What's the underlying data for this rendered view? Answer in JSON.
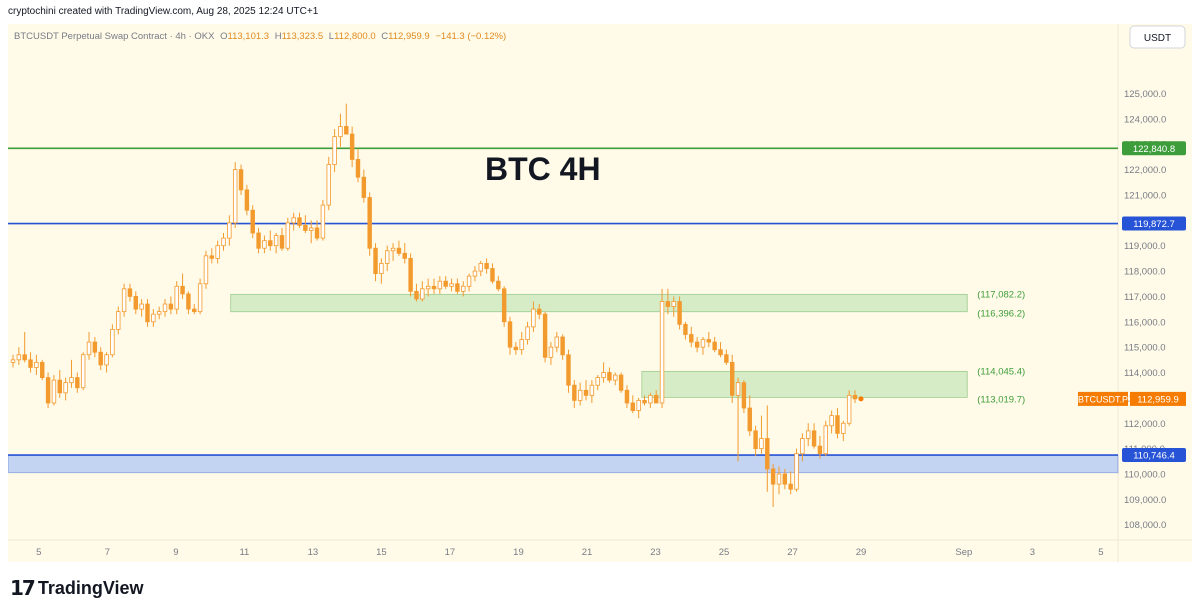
{
  "header": {
    "attribution": "cryptochini created with TradingView.com, Aug 28, 2025 12:24 UTC+1"
  },
  "symbol_bar": {
    "symbol": "BTCUSDT Perpetual Swap Contract · 4h · OKX",
    "open_label": "O",
    "open": "113,101.3",
    "high_label": "H",
    "high": "113,323.5",
    "low_label": "L",
    "low": "112,800.0",
    "close_label": "C",
    "close": "112,959.9",
    "change": "−141.3 (−0.12%)"
  },
  "currency": "USDT",
  "footer": {
    "brand": "TradingView",
    "logo_mark": "17"
  },
  "colors": {
    "background": "#fffbe8",
    "candle": "#f39a2e",
    "candle_bull_body": "#ffffff",
    "green_line": "#3d9d3a",
    "blue_line": "#2753d6",
    "zone_green_fill": "#cfe9c1",
    "zone_blue_fill": "#b9cdf3",
    "price_tag_orange": "#f57c00",
    "text_orange": "#e08a1e"
  },
  "chart_data": {
    "type": "candlestick",
    "title": "BTC 4H",
    "y_range": [
      107200,
      126400
    ],
    "y_ticks": [
      108000,
      109000,
      110000,
      111000,
      112000,
      113000,
      114000,
      115000,
      116000,
      117000,
      118000,
      119000,
      120000,
      121000,
      122000,
      123000,
      124000,
      125000
    ],
    "y_tick_labels": [
      "108,000.0",
      "109,000.0",
      "110,000.0",
      "111,000.0",
      "112,000.0",
      "113,000.0",
      "114,000.0",
      "115,000.0",
      "116,000.0",
      "117,000.0",
      "118,000.0",
      "119,000.0",
      "120,000.0",
      "121,000.0",
      "122,000.0",
      "123,000.0",
      "124,000.0",
      "125,000.0"
    ],
    "x_tick_labels": [
      "5",
      "7",
      "9",
      "11",
      "13",
      "15",
      "17",
      "19",
      "21",
      "23",
      "25",
      "27",
      "29",
      "Sep",
      "3",
      "5"
    ],
    "x_tick_days": [
      5,
      7,
      9,
      11,
      13,
      15,
      17,
      19,
      21,
      23,
      25,
      27,
      29,
      32,
      34,
      36
    ],
    "x_range_days": [
      4.1,
      36.5
    ],
    "horizontal_lines": [
      {
        "name": "resistance",
        "value": 122840.8,
        "label": "122,840.8",
        "color": "green"
      },
      {
        "name": "resistance-2",
        "value": 119872.7,
        "label": "119,872.7",
        "color": "blue"
      },
      {
        "name": "support",
        "value": 110746.4,
        "label": "110,746.4",
        "color": "blue"
      }
    ],
    "zones": [
      {
        "name": "zone-upper",
        "from_day": 10.6,
        "to_day": 32.1,
        "top": 117082.2,
        "bottom": 116396.2,
        "top_label": "(117,082.2)",
        "bottom_label": "(116,396.2)",
        "color": "green"
      },
      {
        "name": "zone-middle",
        "from_day": 22.6,
        "to_day": 32.1,
        "top": 114045.4,
        "bottom": 113019.7,
        "top_label": "(114,045.4)",
        "bottom_label": "(113,019.7)",
        "color": "green"
      },
      {
        "name": "zone-support",
        "from_day": 4.1,
        "to_day": 36.5,
        "top": 110746.4,
        "bottom": 110050,
        "color": "blue"
      }
    ],
    "last_price": {
      "symbol": "BTCUSDT.P",
      "value": 112959.9,
      "label": "112,959.9"
    },
    "candles": [
      {
        "o": 114400,
        "h": 114700,
        "l": 114200,
        "c": 114500
      },
      {
        "o": 114500,
        "h": 115000,
        "l": 114300,
        "c": 114700
      },
      {
        "o": 114700,
        "h": 115600,
        "l": 114400,
        "c": 114500
      },
      {
        "o": 114500,
        "h": 114800,
        "l": 114000,
        "c": 114200
      },
      {
        "o": 114200,
        "h": 114700,
        "l": 113900,
        "c": 114400
      },
      {
        "o": 114400,
        "h": 114500,
        "l": 113700,
        "c": 113800
      },
      {
        "o": 113800,
        "h": 114000,
        "l": 112600,
        "c": 112800
      },
      {
        "o": 112800,
        "h": 113900,
        "l": 112700,
        "c": 113700
      },
      {
        "o": 113700,
        "h": 114100,
        "l": 113000,
        "c": 113200
      },
      {
        "o": 113200,
        "h": 113800,
        "l": 112900,
        "c": 113600
      },
      {
        "o": 113600,
        "h": 114500,
        "l": 113400,
        "c": 113800
      },
      {
        "o": 113800,
        "h": 114000,
        "l": 113200,
        "c": 113400
      },
      {
        "o": 113400,
        "h": 114800,
        "l": 113300,
        "c": 114700
      },
      {
        "o": 114700,
        "h": 115600,
        "l": 114500,
        "c": 115200
      },
      {
        "o": 115200,
        "h": 115400,
        "l": 114600,
        "c": 114800
      },
      {
        "o": 114800,
        "h": 115000,
        "l": 114100,
        "c": 114300
      },
      {
        "o": 114300,
        "h": 114800,
        "l": 114000,
        "c": 114700
      },
      {
        "o": 114700,
        "h": 115900,
        "l": 114600,
        "c": 115700
      },
      {
        "o": 115700,
        "h": 116600,
        "l": 115500,
        "c": 116400
      },
      {
        "o": 116400,
        "h": 117500,
        "l": 116200,
        "c": 117300
      },
      {
        "o": 117300,
        "h": 117500,
        "l": 116800,
        "c": 117000
      },
      {
        "o": 117000,
        "h": 117200,
        "l": 116300,
        "c": 116500
      },
      {
        "o": 116500,
        "h": 116900,
        "l": 116200,
        "c": 116700
      },
      {
        "o": 116700,
        "h": 116900,
        "l": 115800,
        "c": 116000
      },
      {
        "o": 116000,
        "h": 116500,
        "l": 115800,
        "c": 116300
      },
      {
        "o": 116300,
        "h": 116600,
        "l": 116100,
        "c": 116400
      },
      {
        "o": 116400,
        "h": 116900,
        "l": 116200,
        "c": 116700
      },
      {
        "o": 116700,
        "h": 117000,
        "l": 116300,
        "c": 116500
      },
      {
        "o": 116500,
        "h": 117600,
        "l": 116300,
        "c": 117400
      },
      {
        "o": 117400,
        "h": 117900,
        "l": 116900,
        "c": 117100
      },
      {
        "o": 117100,
        "h": 117200,
        "l": 116300,
        "c": 116500
      },
      {
        "o": 116500,
        "h": 116700,
        "l": 116300,
        "c": 116400
      },
      {
        "o": 116400,
        "h": 117700,
        "l": 116300,
        "c": 117500
      },
      {
        "o": 117500,
        "h": 118800,
        "l": 117300,
        "c": 118600
      },
      {
        "o": 118600,
        "h": 118900,
        "l": 118300,
        "c": 118500
      },
      {
        "o": 118500,
        "h": 119200,
        "l": 118300,
        "c": 119000
      },
      {
        "o": 119000,
        "h": 119500,
        "l": 118800,
        "c": 119300
      },
      {
        "o": 119300,
        "h": 120200,
        "l": 119000,
        "c": 119900
      },
      {
        "o": 119900,
        "h": 122300,
        "l": 119700,
        "c": 122000
      },
      {
        "o": 122000,
        "h": 122200,
        "l": 121000,
        "c": 121200
      },
      {
        "o": 121200,
        "h": 121400,
        "l": 120200,
        "c": 120400
      },
      {
        "o": 120400,
        "h": 120600,
        "l": 119300,
        "c": 119500
      },
      {
        "o": 119500,
        "h": 119700,
        "l": 118700,
        "c": 118900
      },
      {
        "o": 118900,
        "h": 119400,
        "l": 118700,
        "c": 119200
      },
      {
        "o": 119200,
        "h": 119600,
        "l": 118800,
        "c": 119000
      },
      {
        "o": 119000,
        "h": 119500,
        "l": 118700,
        "c": 119400
      },
      {
        "o": 119400,
        "h": 119700,
        "l": 118800,
        "c": 118900
      },
      {
        "o": 118900,
        "h": 120100,
        "l": 118800,
        "c": 119900
      },
      {
        "o": 119900,
        "h": 120300,
        "l": 119600,
        "c": 120100
      },
      {
        "o": 120100,
        "h": 120300,
        "l": 119700,
        "c": 119800
      },
      {
        "o": 119800,
        "h": 120200,
        "l": 119500,
        "c": 119600
      },
      {
        "o": 119600,
        "h": 120000,
        "l": 119100,
        "c": 119700
      },
      {
        "o": 119700,
        "h": 120000,
        "l": 119200,
        "c": 119300
      },
      {
        "o": 119300,
        "h": 120800,
        "l": 119200,
        "c": 120600
      },
      {
        "o": 120600,
        "h": 122500,
        "l": 120400,
        "c": 122200
      },
      {
        "o": 122200,
        "h": 123600,
        "l": 121900,
        "c": 123300
      },
      {
        "o": 123300,
        "h": 124200,
        "l": 122900,
        "c": 123700
      },
      {
        "o": 123700,
        "h": 124600,
        "l": 123400,
        "c": 123400
      },
      {
        "o": 123400,
        "h": 123700,
        "l": 122100,
        "c": 122400
      },
      {
        "o": 122400,
        "h": 122800,
        "l": 121500,
        "c": 121700
      },
      {
        "o": 121700,
        "h": 122000,
        "l": 120700,
        "c": 120900
      },
      {
        "o": 120900,
        "h": 121100,
        "l": 118600,
        "c": 118900
      },
      {
        "o": 118900,
        "h": 119100,
        "l": 117600,
        "c": 117900
      },
      {
        "o": 117900,
        "h": 118500,
        "l": 117500,
        "c": 118300
      },
      {
        "o": 118300,
        "h": 119000,
        "l": 118000,
        "c": 118800
      },
      {
        "o": 118800,
        "h": 119100,
        "l": 118400,
        "c": 118900
      },
      {
        "o": 118900,
        "h": 119200,
        "l": 118600,
        "c": 118700
      },
      {
        "o": 118700,
        "h": 119100,
        "l": 118300,
        "c": 118500
      },
      {
        "o": 118500,
        "h": 118700,
        "l": 117000,
        "c": 117200
      },
      {
        "o": 117200,
        "h": 117500,
        "l": 116800,
        "c": 116900
      },
      {
        "o": 116900,
        "h": 117600,
        "l": 116800,
        "c": 117300
      },
      {
        "o": 117300,
        "h": 117700,
        "l": 117000,
        "c": 117400
      },
      {
        "o": 117400,
        "h": 117700,
        "l": 117100,
        "c": 117300
      },
      {
        "o": 117300,
        "h": 117800,
        "l": 117100,
        "c": 117600
      },
      {
        "o": 117600,
        "h": 117800,
        "l": 117300,
        "c": 117400
      },
      {
        "o": 117400,
        "h": 117700,
        "l": 117200,
        "c": 117500
      },
      {
        "o": 117500,
        "h": 117700,
        "l": 117100,
        "c": 117200
      },
      {
        "o": 117200,
        "h": 117600,
        "l": 117000,
        "c": 117400
      },
      {
        "o": 117400,
        "h": 117900,
        "l": 117200,
        "c": 117800
      },
      {
        "o": 117800,
        "h": 118200,
        "l": 117600,
        "c": 118000
      },
      {
        "o": 118000,
        "h": 118400,
        "l": 117800,
        "c": 118300
      },
      {
        "o": 118300,
        "h": 118500,
        "l": 117900,
        "c": 118100
      },
      {
        "o": 118100,
        "h": 118300,
        "l": 117500,
        "c": 117600
      },
      {
        "o": 117600,
        "h": 117800,
        "l": 117200,
        "c": 117300
      },
      {
        "o": 117300,
        "h": 117400,
        "l": 115800,
        "c": 116000
      },
      {
        "o": 116000,
        "h": 116200,
        "l": 114700,
        "c": 115000
      },
      {
        "o": 115000,
        "h": 115200,
        "l": 114700,
        "c": 114900
      },
      {
        "o": 114900,
        "h": 115600,
        "l": 114700,
        "c": 115300
      },
      {
        "o": 115300,
        "h": 116000,
        "l": 115100,
        "c": 115800
      },
      {
        "o": 115800,
        "h": 116800,
        "l": 115600,
        "c": 116500
      },
      {
        "o": 116500,
        "h": 116700,
        "l": 116100,
        "c": 116300
      },
      {
        "o": 116300,
        "h": 116400,
        "l": 114400,
        "c": 114600
      },
      {
        "o": 114600,
        "h": 115200,
        "l": 114300,
        "c": 115000
      },
      {
        "o": 115000,
        "h": 115600,
        "l": 114800,
        "c": 115400
      },
      {
        "o": 115400,
        "h": 115500,
        "l": 114500,
        "c": 114700
      },
      {
        "o": 114700,
        "h": 114900,
        "l": 113200,
        "c": 113500
      },
      {
        "o": 113500,
        "h": 113700,
        "l": 112600,
        "c": 112900
      },
      {
        "o": 112900,
        "h": 113600,
        "l": 112700,
        "c": 113300
      },
      {
        "o": 113300,
        "h": 113700,
        "l": 112900,
        "c": 113100
      },
      {
        "o": 113100,
        "h": 113700,
        "l": 112800,
        "c": 113500
      },
      {
        "o": 113500,
        "h": 113900,
        "l": 113300,
        "c": 113800
      },
      {
        "o": 113800,
        "h": 114400,
        "l": 113600,
        "c": 114000
      },
      {
        "o": 114000,
        "h": 114200,
        "l": 113600,
        "c": 113700
      },
      {
        "o": 113700,
        "h": 114000,
        "l": 113500,
        "c": 113900
      },
      {
        "o": 113900,
        "h": 114000,
        "l": 113200,
        "c": 113300
      },
      {
        "o": 113300,
        "h": 113500,
        "l": 112600,
        "c": 112800
      },
      {
        "o": 112800,
        "h": 113100,
        "l": 112400,
        "c": 112500
      },
      {
        "o": 112500,
        "h": 113000,
        "l": 112200,
        "c": 112900
      },
      {
        "o": 112900,
        "h": 113100,
        "l": 112700,
        "c": 112800
      },
      {
        "o": 112800,
        "h": 113200,
        "l": 112600,
        "c": 113100
      },
      {
        "o": 113100,
        "h": 113300,
        "l": 112900,
        "c": 112800
      },
      {
        "o": 112800,
        "h": 117300,
        "l": 112600,
        "c": 116800
      },
      {
        "o": 116800,
        "h": 117300,
        "l": 116300,
        "c": 116600
      },
      {
        "o": 116600,
        "h": 117000,
        "l": 116200,
        "c": 116800
      },
      {
        "o": 116800,
        "h": 117000,
        "l": 115700,
        "c": 115900
      },
      {
        "o": 115900,
        "h": 116000,
        "l": 115300,
        "c": 115500
      },
      {
        "o": 115500,
        "h": 115800,
        "l": 115000,
        "c": 115200
      },
      {
        "o": 115200,
        "h": 115400,
        "l": 114800,
        "c": 115000
      },
      {
        "o": 115000,
        "h": 115400,
        "l": 114700,
        "c": 115300
      },
      {
        "o": 115300,
        "h": 115600,
        "l": 115000,
        "c": 115200
      },
      {
        "o": 115200,
        "h": 115400,
        "l": 114800,
        "c": 114900
      },
      {
        "o": 114900,
        "h": 115200,
        "l": 114600,
        "c": 114700
      },
      {
        "o": 114700,
        "h": 114900,
        "l": 114300,
        "c": 114400
      },
      {
        "o": 114400,
        "h": 114700,
        "l": 112800,
        "c": 113100
      },
      {
        "o": 113100,
        "h": 113800,
        "l": 110500,
        "c": 113600
      },
      {
        "o": 113600,
        "h": 113700,
        "l": 112400,
        "c": 112600
      },
      {
        "o": 112600,
        "h": 113100,
        "l": 111500,
        "c": 111700
      },
      {
        "o": 111700,
        "h": 111900,
        "l": 110700,
        "c": 111000
      },
      {
        "o": 111000,
        "h": 112300,
        "l": 110800,
        "c": 111400
      },
      {
        "o": 111400,
        "h": 112700,
        "l": 109300,
        "c": 110200
      },
      {
        "o": 110200,
        "h": 110400,
        "l": 108700,
        "c": 109600
      },
      {
        "o": 109600,
        "h": 110300,
        "l": 109200,
        "c": 110000
      },
      {
        "o": 110000,
        "h": 110200,
        "l": 109400,
        "c": 109600
      },
      {
        "o": 109600,
        "h": 110100,
        "l": 109200,
        "c": 109400
      },
      {
        "o": 109400,
        "h": 111000,
        "l": 109300,
        "c": 110800
      },
      {
        "o": 110800,
        "h": 111600,
        "l": 110500,
        "c": 111400
      },
      {
        "o": 111400,
        "h": 112000,
        "l": 111100,
        "c": 111700
      },
      {
        "o": 111700,
        "h": 112000,
        "l": 111000,
        "c": 111100
      },
      {
        "o": 111100,
        "h": 111500,
        "l": 110600,
        "c": 110800
      },
      {
        "o": 110800,
        "h": 112100,
        "l": 110700,
        "c": 111900
      },
      {
        "o": 111900,
        "h": 112500,
        "l": 111600,
        "c": 112300
      },
      {
        "o": 112300,
        "h": 112600,
        "l": 111400,
        "c": 111600
      },
      {
        "o": 111600,
        "h": 112100,
        "l": 111300,
        "c": 112000
      },
      {
        "o": 112000,
        "h": 113300,
        "l": 111900,
        "c": 113100
      },
      {
        "o": 113100,
        "h": 113300,
        "l": 112800,
        "c": 112960
      }
    ]
  }
}
